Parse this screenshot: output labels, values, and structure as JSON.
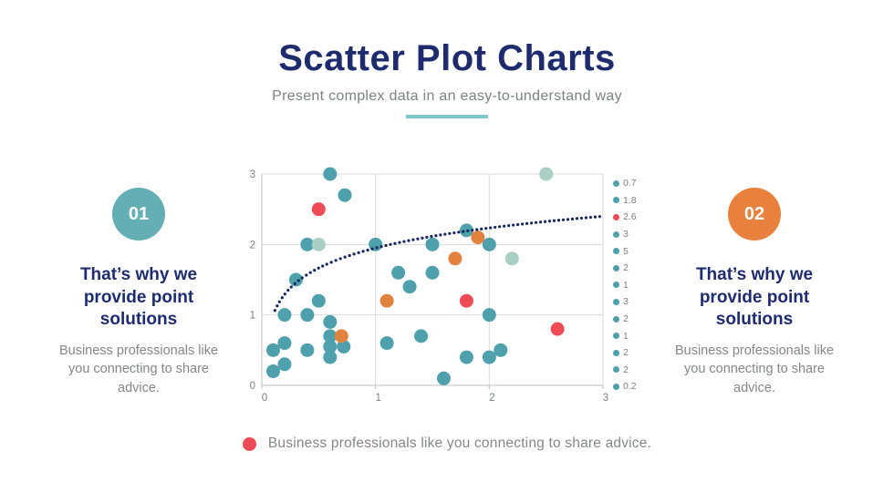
{
  "header": {
    "title": "Scatter Plot Charts",
    "subtitle": "Present complex data in an easy-to-understand way",
    "divider_color": "#7EC5CE"
  },
  "left_panel": {
    "badge": "01",
    "badge_color": "#64AFB6",
    "heading": "That’s why we provide point solutions",
    "body": "Business professionals like you connecting to share advice."
  },
  "right_panel": {
    "badge": "02",
    "badge_color": "#E8813E",
    "heading": "That’s why we provide point solutions",
    "body": "Business professionals like you connecting to share advice."
  },
  "bottom_legend": {
    "marker_color": "#EF4B57",
    "label": "Business professionals like you connecting to share advice."
  },
  "colors": {
    "title_navy": "#1E2C6E",
    "body_gray": "#85868A",
    "tick_gray": "#7F8084",
    "grid_gray": "#D9D9D9",
    "axis_gray": "#BFBFBF",
    "dot_teal": "#4EA0AC",
    "dot_pale": "#A9CEC3",
    "dot_orange": "#E2823F",
    "dot_red": "#EF4B57",
    "trend_navy": "#15275B"
  },
  "chart_data": {
    "type": "scatter",
    "title": "",
    "xlabel": "",
    "ylabel": "",
    "xlim": [
      0,
      3
    ],
    "ylim": [
      0,
      3
    ],
    "xticks": [
      0,
      1,
      2,
      3
    ],
    "yticks": [
      0,
      1,
      2,
      3
    ],
    "grid": true,
    "legend_position": "right",
    "marker_radius": 7.5,
    "series": [
      {
        "name": "teal-points",
        "color": "#4EA0AC",
        "points": [
          [
            0.6,
            3.0
          ],
          [
            0.73,
            2.7
          ],
          [
            0.4,
            2.0
          ],
          [
            1.0,
            2.0
          ],
          [
            1.5,
            2.0
          ],
          [
            1.8,
            2.2
          ],
          [
            2.0,
            2.0
          ],
          [
            0.3,
            1.5
          ],
          [
            1.2,
            1.6
          ],
          [
            1.5,
            1.6
          ],
          [
            1.3,
            1.4
          ],
          [
            0.5,
            1.2
          ],
          [
            0.2,
            1.0
          ],
          [
            0.4,
            1.0
          ],
          [
            2.0,
            1.0
          ],
          [
            0.6,
            0.9
          ],
          [
            0.6,
            0.7
          ],
          [
            0.6,
            0.55
          ],
          [
            0.6,
            0.4
          ],
          [
            0.72,
            0.55
          ],
          [
            1.4,
            0.7
          ],
          [
            1.1,
            0.6
          ],
          [
            0.2,
            0.6
          ],
          [
            0.1,
            0.5
          ],
          [
            0.4,
            0.5
          ],
          [
            0.2,
            0.3
          ],
          [
            0.1,
            0.2
          ],
          [
            1.6,
            0.1
          ],
          [
            1.8,
            0.4
          ],
          [
            2.0,
            0.4
          ],
          [
            2.1,
            0.5
          ]
        ]
      },
      {
        "name": "pale-points",
        "color": "#A9CEC3",
        "points": [
          [
            0.5,
            2.0
          ],
          [
            2.5,
            3.0
          ],
          [
            2.2,
            1.8
          ]
        ]
      },
      {
        "name": "orange-points",
        "color": "#E2823F",
        "points": [
          [
            1.9,
            2.1
          ],
          [
            1.7,
            1.8
          ],
          [
            1.1,
            1.2
          ],
          [
            0.7,
            0.7
          ]
        ]
      },
      {
        "name": "red-points",
        "color": "#EF4B57",
        "points": [
          [
            0.5,
            2.5
          ],
          [
            1.8,
            1.2
          ],
          [
            2.6,
            0.8
          ]
        ]
      }
    ],
    "trendline": {
      "style": "dotted",
      "color": "#15275B",
      "formula": "y = 1.95 + 0.41*ln(x)",
      "a": 0.41,
      "b": 1.95,
      "x_start": 0.115,
      "x_end": 2.99
    },
    "legend_items": [
      {
        "label": "0.7",
        "color": "#4EA0AC"
      },
      {
        "label": "1.8",
        "color": "#4EA0AC"
      },
      {
        "label": "2.6",
        "color": "#EF4B57"
      },
      {
        "label": "3",
        "color": "#4EA0AC"
      },
      {
        "label": "5",
        "color": "#4EA0AC"
      },
      {
        "label": "2",
        "color": "#4EA0AC"
      },
      {
        "label": "1",
        "color": "#4EA0AC"
      },
      {
        "label": "3",
        "color": "#4EA0AC"
      },
      {
        "label": "2",
        "color": "#4EA0AC"
      },
      {
        "label": "1",
        "color": "#4EA0AC"
      },
      {
        "label": "2",
        "color": "#4EA0AC"
      },
      {
        "label": "2",
        "color": "#4EA0AC"
      },
      {
        "label": "0.2",
        "color": "#4EA0AC"
      }
    ]
  }
}
